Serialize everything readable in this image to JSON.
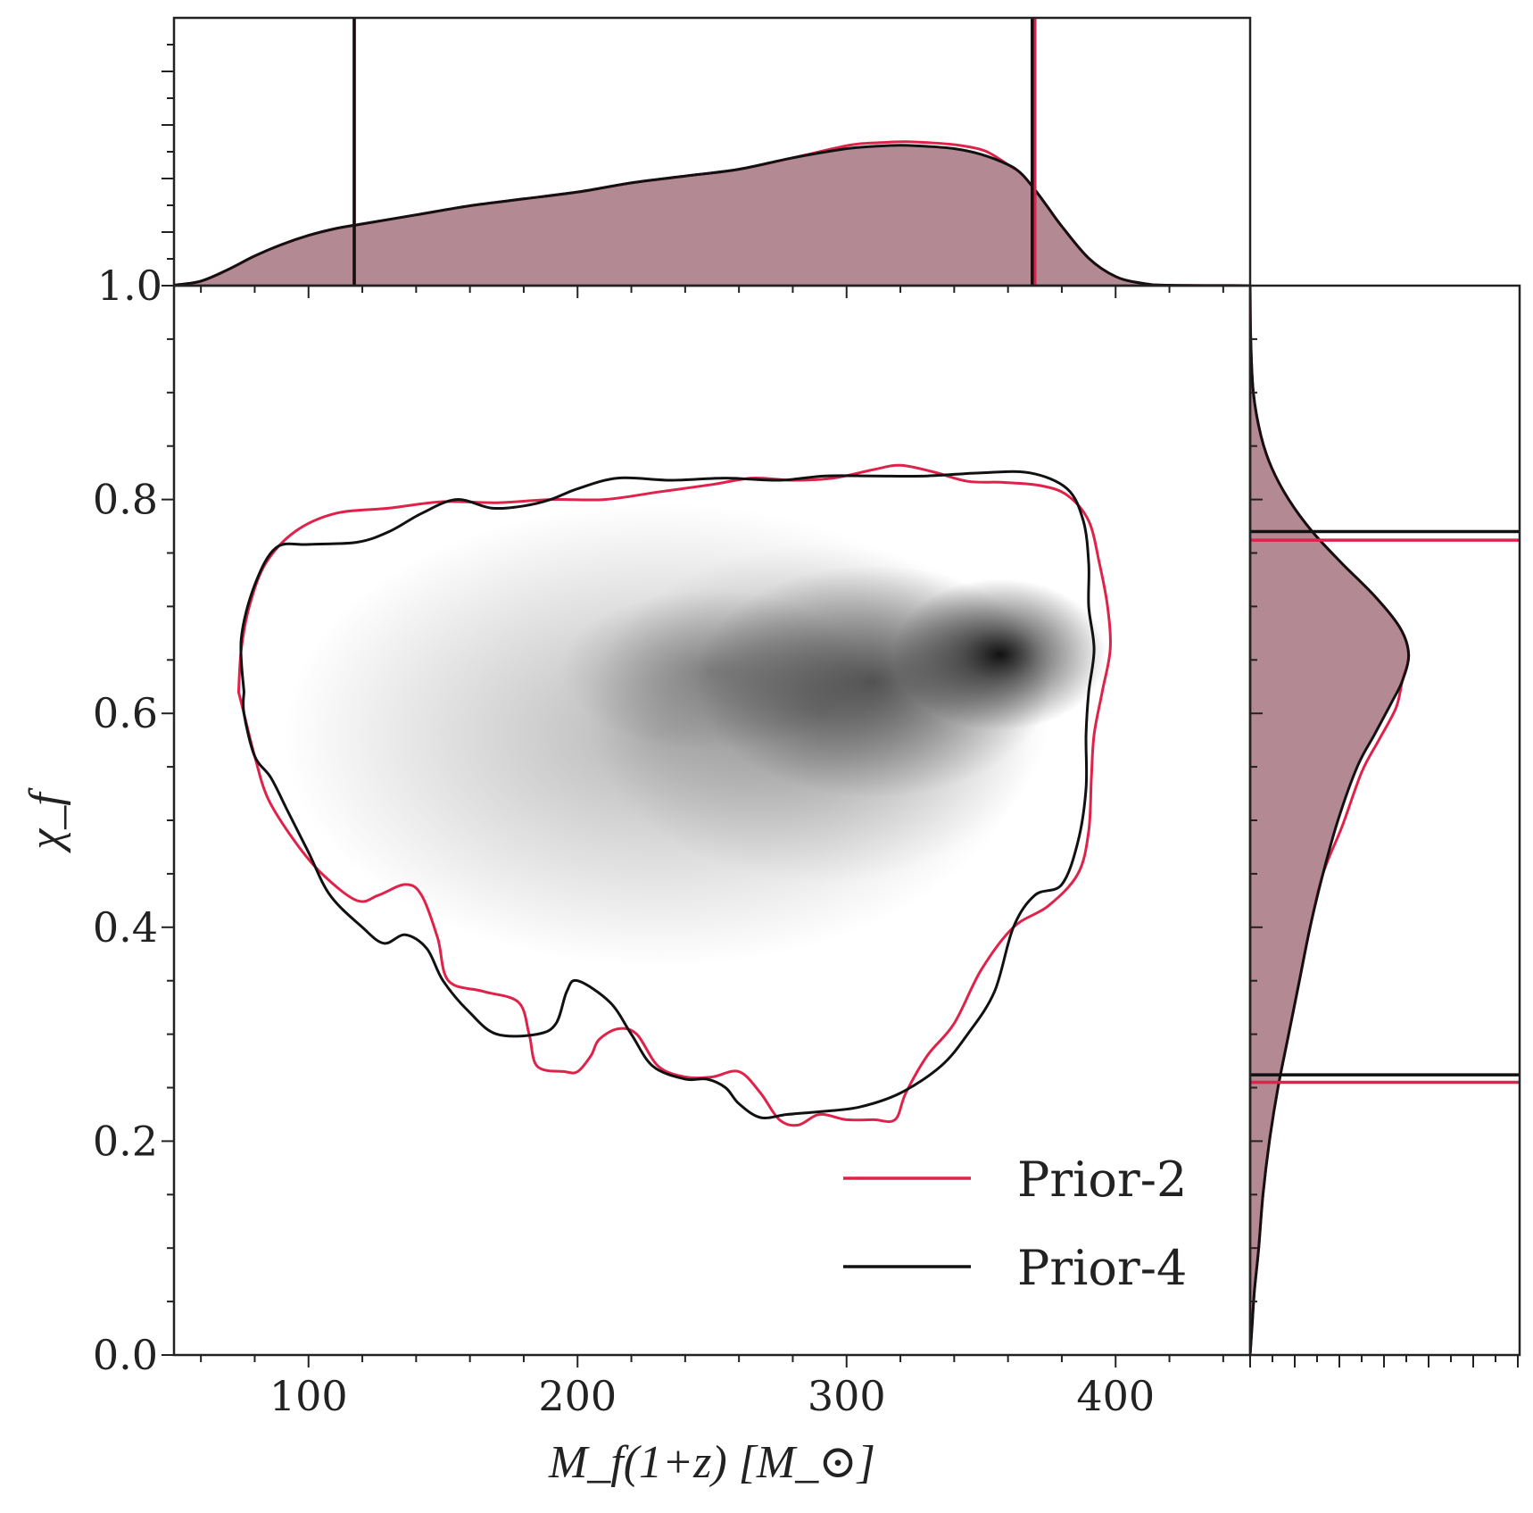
{
  "chart_data": {
    "type": "joint-kde",
    "main": {
      "xlabel": "M_f(1+z) [M_⊙]",
      "ylabel": "χ_f",
      "xlim": [
        50,
        450
      ],
      "ylim": [
        0.0,
        1.0
      ],
      "x_ticks": [
        100,
        200,
        300,
        400
      ],
      "y_ticks": [
        0.0,
        0.2,
        0.4,
        0.6,
        0.8
      ],
      "density_peak": {
        "x": 357,
        "y": 0.655
      },
      "series": [
        {
          "name": "Prior-2",
          "color": "#e0224a",
          "contour": [
            [
              74,
              0.62
            ],
            [
              75,
              0.66
            ],
            [
              78,
              0.7
            ],
            [
              84,
              0.74
            ],
            [
              95,
              0.77
            ],
            [
              110,
              0.787
            ],
            [
              130,
              0.792
            ],
            [
              150,
              0.798
            ],
            [
              170,
              0.797
            ],
            [
              190,
              0.8
            ],
            [
              210,
              0.8
            ],
            [
              230,
              0.807
            ],
            [
              250,
              0.814
            ],
            [
              265,
              0.82
            ],
            [
              280,
              0.818
            ],
            [
              295,
              0.82
            ],
            [
              310,
              0.828
            ],
            [
              320,
              0.832
            ],
            [
              332,
              0.826
            ],
            [
              345,
              0.817
            ],
            [
              358,
              0.816
            ],
            [
              372,
              0.813
            ],
            [
              382,
              0.804
            ],
            [
              390,
              0.78
            ],
            [
              394,
              0.74
            ],
            [
              397,
              0.7
            ],
            [
              398,
              0.66
            ],
            [
              395,
              0.62
            ],
            [
              392,
              0.58
            ],
            [
              391,
              0.54
            ],
            [
              390,
              0.49
            ],
            [
              386,
              0.45
            ],
            [
              375,
              0.42
            ],
            [
              362,
              0.4
            ],
            [
              350,
              0.36
            ],
            [
              340,
              0.31
            ],
            [
              330,
              0.28
            ],
            [
              322,
              0.245
            ],
            [
              318,
              0.22
            ],
            [
              310,
              0.22
            ],
            [
              300,
              0.22
            ],
            [
              290,
              0.225
            ],
            [
              282,
              0.215
            ],
            [
              275,
              0.22
            ],
            [
              268,
              0.245
            ],
            [
              260,
              0.265
            ],
            [
              250,
              0.26
            ],
            [
              240,
              0.26
            ],
            [
              230,
              0.27
            ],
            [
              222,
              0.3
            ],
            [
              215,
              0.305
            ],
            [
              208,
              0.295
            ],
            [
              205,
              0.28
            ],
            [
              200,
              0.265
            ],
            [
              195,
              0.265
            ],
            [
              185,
              0.27
            ],
            [
              182,
              0.3
            ],
            [
              178,
              0.33
            ],
            [
              165,
              0.34
            ],
            [
              152,
              0.35
            ],
            [
              148,
              0.39
            ],
            [
              142,
              0.43
            ],
            [
              136,
              0.44
            ],
            [
              126,
              0.43
            ],
            [
              118,
              0.425
            ],
            [
              105,
              0.45
            ],
            [
              95,
              0.48
            ],
            [
              85,
              0.52
            ],
            [
              80,
              0.56
            ],
            [
              76,
              0.6
            ],
            [
              74,
              0.62
            ]
          ],
          "top_interval": [
            116,
            369
          ],
          "right_interval": [
            0.255,
            0.762
          ]
        },
        {
          "name": "Prior-4",
          "color": "#111111",
          "contour": [
            [
              76,
              0.62
            ],
            [
              75,
              0.67
            ],
            [
              80,
              0.72
            ],
            [
              88,
              0.755
            ],
            [
              100,
              0.758
            ],
            [
              118,
              0.76
            ],
            [
              130,
              0.77
            ],
            [
              142,
              0.787
            ],
            [
              155,
              0.8
            ],
            [
              168,
              0.792
            ],
            [
              180,
              0.794
            ],
            [
              190,
              0.8
            ],
            [
              200,
              0.81
            ],
            [
              215,
              0.82
            ],
            [
              235,
              0.818
            ],
            [
              255,
              0.82
            ],
            [
              275,
              0.818
            ],
            [
              292,
              0.822
            ],
            [
              310,
              0.822
            ],
            [
              330,
              0.822
            ],
            [
              350,
              0.825
            ],
            [
              368,
              0.825
            ],
            [
              382,
              0.81
            ],
            [
              388,
              0.78
            ],
            [
              390,
              0.74
            ],
            [
              390,
              0.7
            ],
            [
              392,
              0.66
            ],
            [
              390,
              0.62
            ],
            [
              389,
              0.58
            ],
            [
              389,
              0.53
            ],
            [
              386,
              0.48
            ],
            [
              380,
              0.44
            ],
            [
              370,
              0.43
            ],
            [
              362,
              0.4
            ],
            [
              355,
              0.34
            ],
            [
              345,
              0.3
            ],
            [
              335,
              0.27
            ],
            [
              320,
              0.245
            ],
            [
              305,
              0.232
            ],
            [
              292,
              0.228
            ],
            [
              278,
              0.225
            ],
            [
              268,
              0.222
            ],
            [
              260,
              0.235
            ],
            [
              255,
              0.25
            ],
            [
              248,
              0.258
            ],
            [
              240,
              0.258
            ],
            [
              228,
              0.27
            ],
            [
              220,
              0.3
            ],
            [
              212,
              0.33
            ],
            [
              200,
              0.35
            ],
            [
              196,
              0.34
            ],
            [
              192,
              0.31
            ],
            [
              185,
              0.3
            ],
            [
              170,
              0.3
            ],
            [
              160,
              0.32
            ],
            [
              150,
              0.35
            ],
            [
              144,
              0.38
            ],
            [
              136,
              0.393
            ],
            [
              128,
              0.385
            ],
            [
              120,
              0.4
            ],
            [
              108,
              0.43
            ],
            [
              100,
              0.47
            ],
            [
              92,
              0.51
            ],
            [
              86,
              0.54
            ],
            [
              80,
              0.56
            ],
            [
              76,
              0.6
            ],
            [
              76,
              0.62
            ]
          ],
          "top_interval": [
            117,
            369
          ],
          "right_interval": [
            0.262,
            0.77
          ]
        }
      ]
    },
    "top_marginal": {
      "ylim_labels": [
        "1.0"
      ],
      "x": [
        50,
        60,
        70,
        80,
        90,
        100,
        110,
        120,
        140,
        160,
        180,
        200,
        220,
        240,
        260,
        280,
        300,
        310,
        320,
        330,
        340,
        350,
        360,
        365,
        370,
        375,
        380,
        390,
        400,
        410,
        420,
        450
      ],
      "density": [
        0.002,
        0.02,
        0.07,
        0.13,
        0.18,
        0.22,
        0.25,
        0.27,
        0.31,
        0.35,
        0.38,
        0.41,
        0.45,
        0.48,
        0.51,
        0.56,
        0.6,
        0.61,
        0.615,
        0.61,
        0.6,
        0.575,
        0.53,
        0.49,
        0.42,
        0.34,
        0.26,
        0.12,
        0.04,
        0.01,
        0.002,
        0.0
      ]
    },
    "right_marginal": {
      "y": [
        0.0,
        0.03,
        0.06,
        0.1,
        0.15,
        0.2,
        0.25,
        0.3,
        0.35,
        0.4,
        0.45,
        0.5,
        0.55,
        0.58,
        0.61,
        0.63,
        0.655,
        0.68,
        0.71,
        0.74,
        0.77,
        0.8,
        0.83,
        0.86,
        0.9,
        0.95,
        1.0
      ],
      "density": [
        0.0,
        0.01,
        0.02,
        0.04,
        0.06,
        0.09,
        0.13,
        0.18,
        0.23,
        0.28,
        0.34,
        0.41,
        0.5,
        0.58,
        0.66,
        0.71,
        0.74,
        0.7,
        0.58,
        0.43,
        0.29,
        0.18,
        0.1,
        0.05,
        0.015,
        0.003,
        0.0
      ]
    },
    "legend": {
      "position": "bottom-right",
      "entries": [
        {
          "label": "Prior-2",
          "color": "#e0224a"
        },
        {
          "label": "Prior-4",
          "color": "#111111"
        }
      ]
    },
    "fill_color": "#9a6370"
  }
}
